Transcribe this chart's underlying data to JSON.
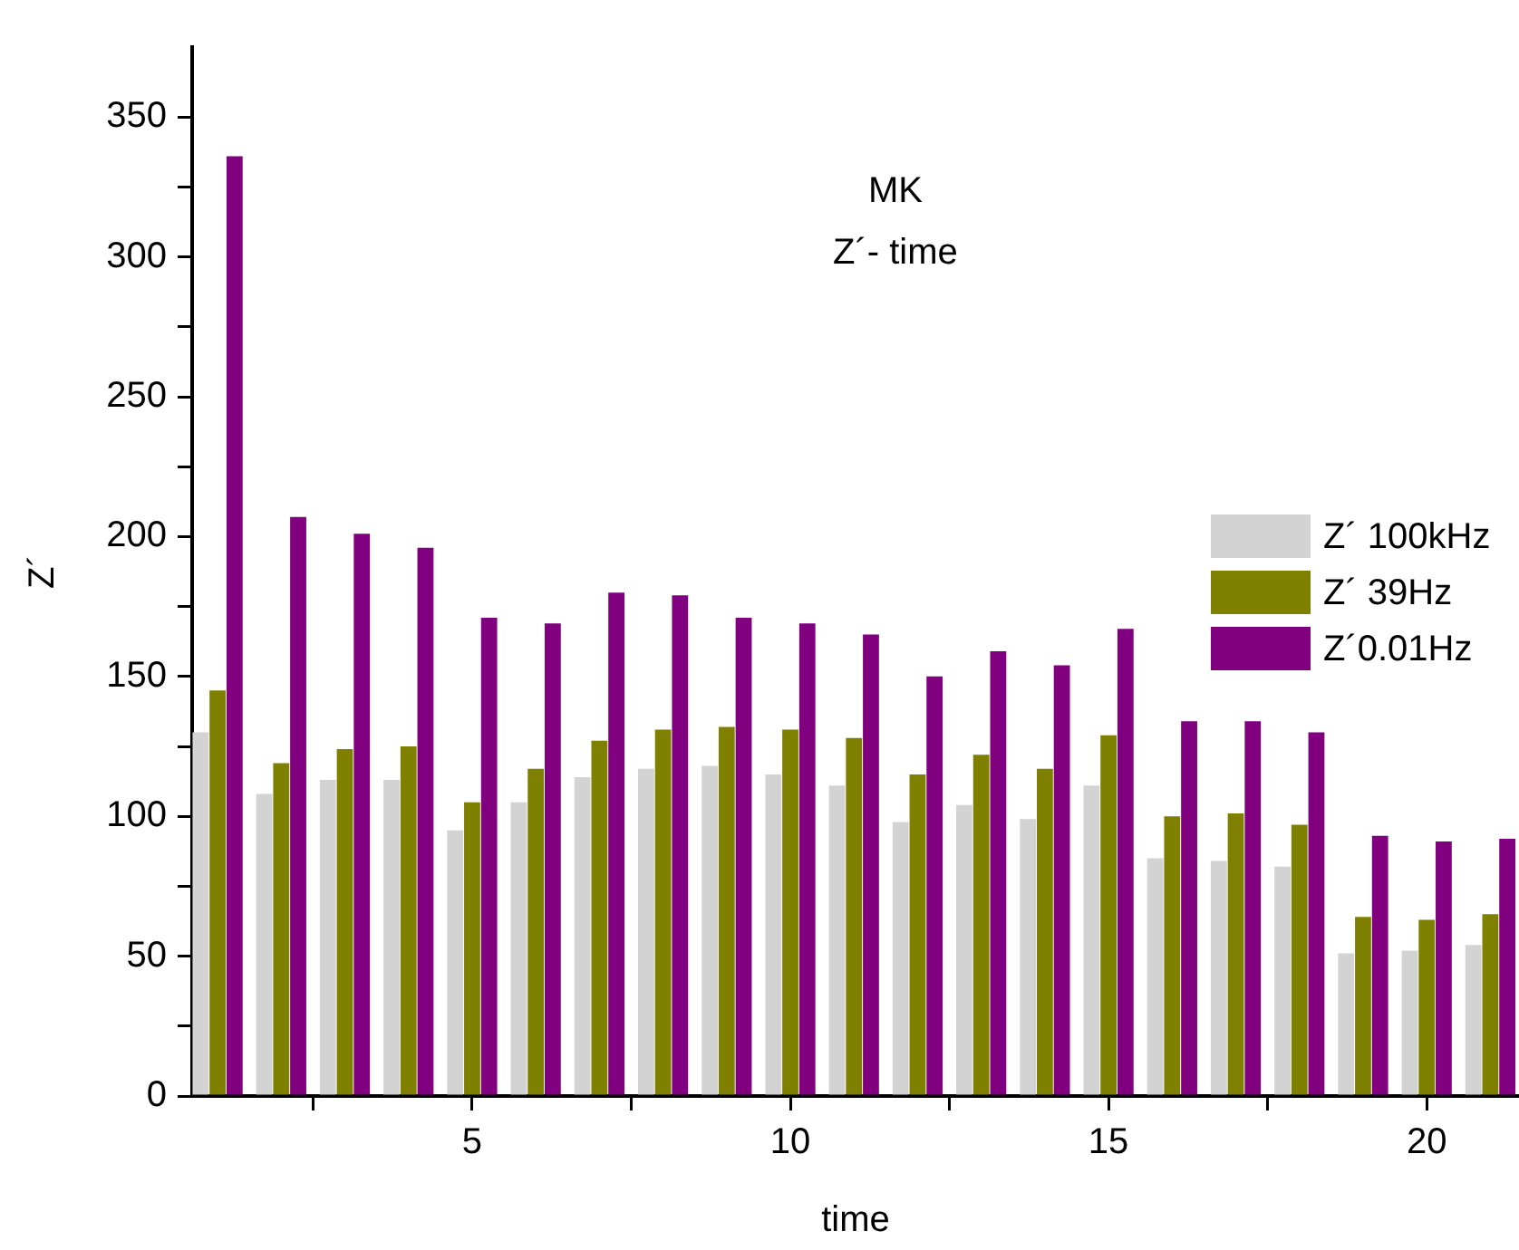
{
  "chart_data": {
    "type": "bar",
    "title": "MK",
    "subtitle": "Z´- time",
    "xlabel": "time",
    "ylabel": "Z´",
    "x": [
      1,
      2,
      3,
      4,
      5,
      6,
      7,
      8,
      9,
      10,
      11,
      12,
      13,
      14,
      15,
      16,
      17,
      18,
      19,
      20,
      21
    ],
    "series": [
      {
        "name": "Z´ 100kHz",
        "color": "#d3d3d3",
        "values": [
          130,
          108,
          113,
          113,
          95,
          105,
          114,
          117,
          118,
          115,
          111,
          98,
          104,
          99,
          111,
          85,
          84,
          82,
          51,
          52,
          54
        ]
      },
      {
        "name": "Z´ 39Hz",
        "color": "#808000",
        "values": [
          145,
          119,
          124,
          125,
          105,
          117,
          127,
          131,
          132,
          131,
          128,
          115,
          122,
          117,
          129,
          100,
          101,
          97,
          64,
          63,
          65
        ]
      },
      {
        "name": "Z´0.01Hz",
        "color": "#800080",
        "values": [
          336,
          207,
          201,
          196,
          171,
          169,
          180,
          179,
          171,
          169,
          165,
          150,
          159,
          154,
          167,
          134,
          134,
          130,
          93,
          91,
          92
        ]
      }
    ],
    "xlim": [
      0.6,
      21.45
    ],
    "xticks": [
      {
        "value": 2.5,
        "label": null
      },
      5,
      {
        "value": 7.5,
        "label": null
      },
      10,
      {
        "value": 12.5,
        "label": null
      },
      15,
      {
        "value": 17.5,
        "label": null
      },
      20
    ],
    "ylim": [
      0,
      375
    ],
    "yticks": [
      0,
      {
        "value": 25,
        "label": null
      },
      50,
      {
        "value": 75,
        "label": null
      },
      100,
      {
        "value": 125,
        "label": null
      },
      150,
      {
        "value": 175,
        "label": null
      },
      200,
      {
        "value": 225,
        "label": null
      },
      250,
      {
        "value": 275,
        "label": null
      },
      300,
      {
        "value": 325,
        "label": null
      },
      350
    ],
    "grid": false,
    "legend": "right"
  }
}
